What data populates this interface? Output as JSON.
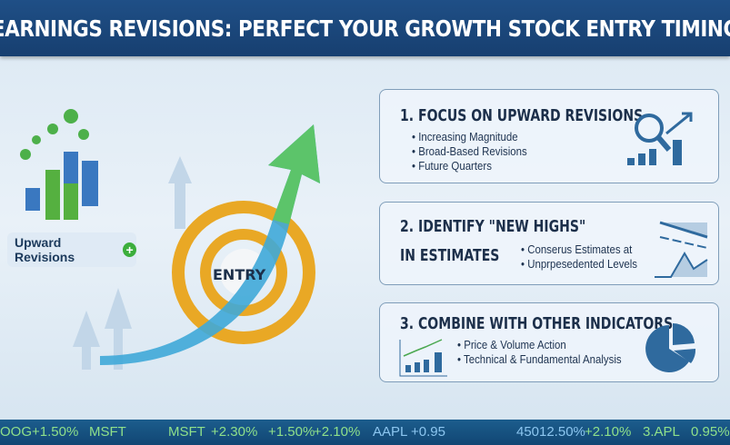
{
  "title": "EARNINGS REVISIONS: PERFECT YOUR GROWTH STOCK ENTRY TIMING",
  "illustration": {
    "label": "Upward Revisions",
    "target_label": "ENTRY"
  },
  "cards": [
    {
      "title": "1. FOCUS ON UPWARD REVISIONS",
      "bullets": [
        "Increasing Magnitude",
        "Broad-Based Revisions",
        "Future Quarters"
      ],
      "icon": "magnifier-chart-icon"
    },
    {
      "title_line1": "2. IDENTIFY \"NEW HIGHS\"",
      "title_line2": "IN ESTIMATES",
      "bullets": [
        "Conserus Estimates at",
        "Unprpesedented Levels"
      ],
      "icon": "line-chart-icon"
    },
    {
      "title": "3. COMBINE WITH OTHER INDICATORS",
      "bullets": [
        "Price & Volume Action",
        "Technical & Fundamental Analysis"
      ],
      "icon": "pie-chart-icon"
    }
  ],
  "ticker": [
    "OOG",
    "+1.50%",
    "MSFT",
    "MSFT",
    "+2.30%",
    "+1.50%",
    "+2.10%",
    "AAPL",
    "+0.95",
    "450",
    "12.50%",
    "+2.10%",
    "3.APL",
    "0.95%"
  ],
  "colors": {
    "banner": "#1f4f86",
    "accent_green": "#3cae3c",
    "gold": "#e9a825",
    "icon_blue": "#2f6a9e"
  }
}
